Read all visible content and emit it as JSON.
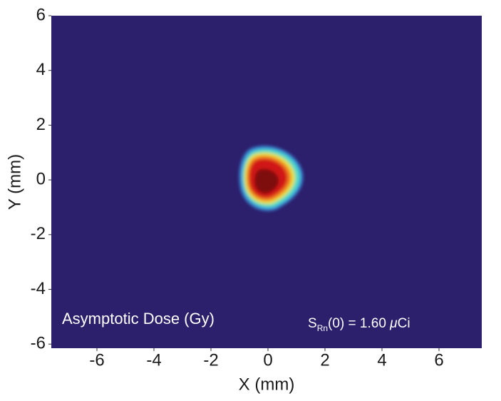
{
  "chart_data": {
    "type": "heatmap",
    "xlabel": "X (mm)",
    "ylabel": "Y (mm)",
    "xlim": [
      -7.6,
      7.5
    ],
    "xticks": [
      -6,
      -4,
      -2,
      0,
      2,
      4,
      6
    ],
    "ylim": [
      -6.15,
      6
    ],
    "yticks": [
      -6,
      -4,
      -2,
      0,
      2,
      4,
      6
    ],
    "background": "#2c1f6c",
    "annotations": [
      {
        "text": "Asymptotic Dose (Gy)"
      },
      {
        "symbol": "S",
        "subscript": "Rn",
        "text": "(0) = 1.60 ",
        "unit_prefix": "μ",
        "unit": "Ci"
      }
    ]
  }
}
